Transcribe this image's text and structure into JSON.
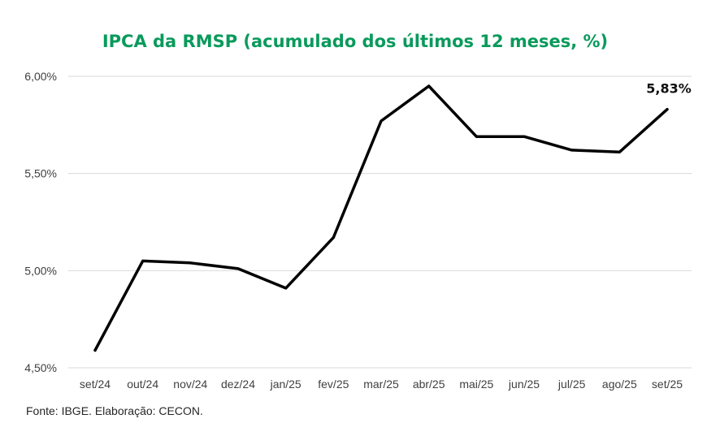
{
  "chart_data": {
    "type": "line",
    "title": "IPCA da RMSP (acumulado dos últimos 12 meses, %)",
    "categories": [
      "set/24",
      "out/24",
      "nov/24",
      "dez/24",
      "jan/25",
      "fev/25",
      "mar/25",
      "abr/25",
      "mai/25",
      "jun/25",
      "jul/25",
      "ago/25",
      "set/25"
    ],
    "series": [
      {
        "values": [
          4.59,
          5.05,
          5.04,
          5.01,
          4.91,
          5.17,
          5.77,
          5.95,
          5.69,
          5.69,
          5.62,
          5.61,
          5.83
        ]
      }
    ],
    "ylim": [
      4.5,
      6.0
    ],
    "yticks": [
      4.5,
      5.0,
      5.5,
      6.0
    ],
    "ytick_labels": [
      "4,50%",
      "5,00%",
      "5,50%",
      "6,00%"
    ],
    "grid": "horizontal",
    "data_label": {
      "index": 12,
      "text": "5,83%"
    },
    "source": "Fonte: IBGE. Elaboração: CECON.",
    "colors": {
      "title": "#0a9a5c",
      "line": "#000000",
      "grid": "#d9d9d9"
    }
  }
}
